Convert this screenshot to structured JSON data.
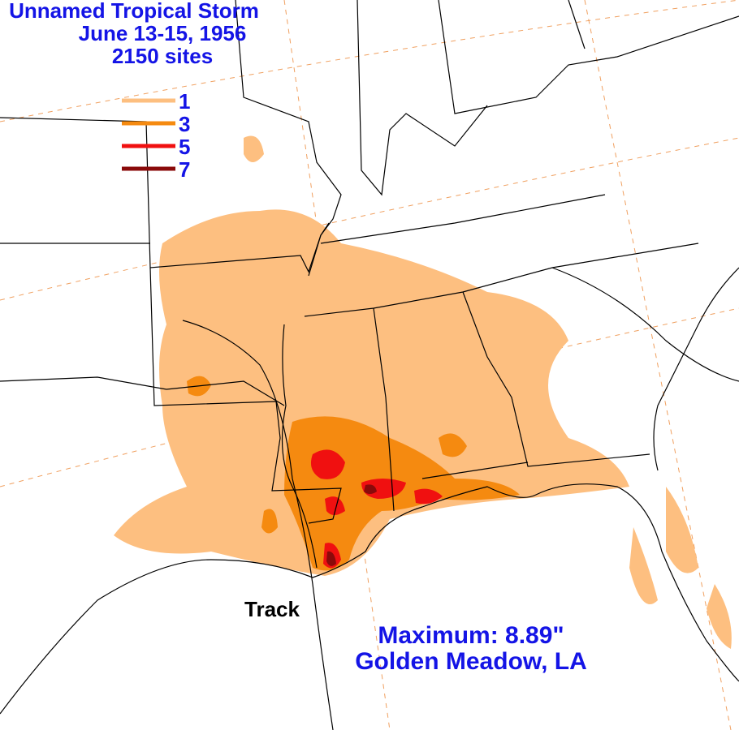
{
  "title": [
    "Unnamed Tropical Storm",
    "June 13-15, 1956",
    "2150 sites"
  ],
  "legend": [
    {
      "label": "1",
      "color": "#fdbf80"
    },
    {
      "label": "3",
      "color": "#f58a10"
    },
    {
      "label": "5",
      "color": "#f01010"
    },
    {
      "label": "7",
      "color": "#8a0a0a"
    }
  ],
  "track_label": "Track",
  "maximum": [
    "Maximum:  8.89\"",
    "Golden Meadow, LA"
  ]
}
